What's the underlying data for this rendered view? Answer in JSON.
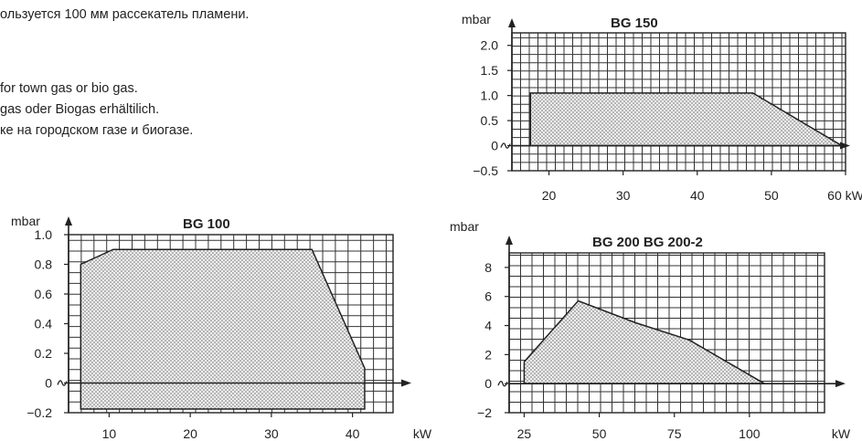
{
  "text": {
    "line0": "ользуется 100 мм рассекатель пламени.",
    "line1": "for town gas or bio gas.",
    "line2": "gas oder Biogas erhältilich.",
    "line3": "ке на городском газе и биогазе."
  },
  "chart_data": [
    {
      "type": "area",
      "title": "BG 150",
      "ylabel": "mbar",
      "xlabel": "",
      "x_ticks": [
        20,
        30,
        40,
        50,
        60
      ],
      "x_tick_labels": [
        "20",
        "30",
        "40",
        "50",
        "60 kW"
      ],
      "y_ticks": [
        -0.5,
        0,
        0.5,
        1.0,
        1.5,
        2.0
      ],
      "y_tick_labels": [
        "−0.5",
        "0",
        "0.5",
        "1.0",
        "1.5",
        "2.0"
      ],
      "xlim": [
        15,
        60
      ],
      "ylim": [
        -0.5,
        2.25
      ],
      "x": [
        17.5,
        17.5,
        47.5,
        59.5,
        17.5
      ],
      "y": [
        0,
        1.05,
        1.05,
        0,
        0
      ],
      "grid": true
    },
    {
      "type": "area",
      "title": "BG 100",
      "ylabel": "mbar",
      "xlabel": "kW",
      "x_ticks": [
        10,
        20,
        30,
        40
      ],
      "x_tick_labels": [
        "10",
        "20",
        "30",
        "40"
      ],
      "y_ticks": [
        -0.2,
        0,
        0.2,
        0.4,
        0.6,
        0.8,
        1.0
      ],
      "y_tick_labels": [
        "−0.2",
        "0",
        "0.2",
        "0.4",
        "0.6",
        "0.8",
        "1.0"
      ],
      "xlim": [
        5,
        45
      ],
      "ylim": [
        -0.2,
        1.0
      ],
      "x": [
        6.5,
        6.5,
        8.5,
        10.5,
        35,
        41.5,
        41.5,
        6.5
      ],
      "y": [
        -0.175,
        0.8,
        0.85,
        0.9,
        0.9,
        0.1,
        -0.175,
        -0.175
      ],
      "grid": true
    },
    {
      "type": "area",
      "title": "BG 200   BG 200-2",
      "ylabel": "mbar",
      "xlabel": "kW",
      "x_ticks": [
        25,
        50,
        75,
        100
      ],
      "x_tick_labels": [
        "25",
        "50",
        "75",
        "100"
      ],
      "y_ticks": [
        -2,
        0,
        2,
        4,
        6,
        8
      ],
      "y_tick_labels": [
        "−2",
        "0",
        "2",
        "4",
        "6",
        "8"
      ],
      "xlim": [
        20,
        125
      ],
      "ylim": [
        -2,
        9
      ],
      "x": [
        25,
        25,
        43,
        62,
        80,
        105,
        25
      ],
      "y": [
        0,
        1.5,
        5.7,
        4.2,
        3,
        0,
        0
      ],
      "grid": true
    }
  ]
}
